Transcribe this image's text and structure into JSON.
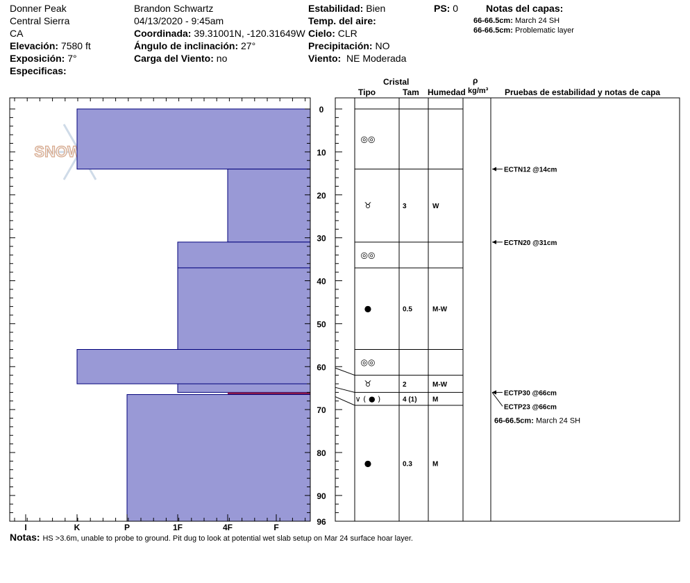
{
  "header": {
    "col1": [
      "Donner Peak",
      "Central Sierra",
      "CA"
    ],
    "elevation_label": "Elevación:",
    "elevation": "7580 ft",
    "aspect_label": "Exposición:",
    "aspect": "7°",
    "specifics_label": "Especificas:",
    "observer": "Brandon Schwartz",
    "datetime": "04/13/2020 - 9:45am",
    "coord_label": "Coordinada:",
    "coord": "39.31001N, -120.31649W",
    "incline_label": "Ángulo de inclinación:",
    "incline": "27°",
    "wind_load_label": "Carga del Viento:",
    "wind_load": "no",
    "stability_label": "Estabilidad:",
    "stability": "Bien",
    "air_temp_label": "Temp. del aire:",
    "sky_label": "Cielo:",
    "sky": "CLR",
    "precip_label": "Precipitación:",
    "precip": "NO",
    "wind_label": "Viento:",
    "wind": "NE Moderada",
    "ps_label": "PS:",
    "ps": "0",
    "layer_notes_title": "Notas del capas:",
    "layer_notes": [
      {
        "range": "66-66.5cm:",
        "text": "March 24 SH"
      },
      {
        "range": "66-66.5cm:",
        "text": "Problematic layer"
      }
    ]
  },
  "logo_text": "SNOWPILOT",
  "table_headers": {
    "crystal": "Cristal",
    "type": "Tipo",
    "size": "Tam",
    "moisture": "Humedad",
    "rho": "ρ",
    "density_unit": "kg/m³",
    "tests": "Pruebas de estabilidad y notas de capa"
  },
  "notes_label": "Notas:",
  "notes": "HS >3.6m, unable to probe to ground. Pit dug to look at potential wet slab setup on Mar 24 surface hoar layer.",
  "colors": {
    "layer_fill": "#9999d6",
    "layer_stroke": "#00007a",
    "weak_layer": "#8b1a4a"
  },
  "chart_data": {
    "type": "snow_profile",
    "depth_axis": {
      "min": 0,
      "max": 96,
      "ticks": [
        0,
        10,
        20,
        30,
        40,
        50,
        60,
        70,
        80,
        90,
        96
      ],
      "unit": "cm"
    },
    "hardness_axis": {
      "labels": [
        "I",
        "K",
        "P",
        "1F",
        "4F",
        "F"
      ],
      "order": [
        "F",
        "4F",
        "1F",
        "P",
        "K",
        "I"
      ]
    },
    "hardness_layers": [
      {
        "top": 0,
        "bottom": 14,
        "hardness": "K"
      },
      {
        "top": 14,
        "bottom": 31,
        "hardness": "4F"
      },
      {
        "top": 31,
        "bottom": 37,
        "hardness": "1F"
      },
      {
        "top": 37,
        "bottom": 56,
        "hardness": "1F"
      },
      {
        "top": 56,
        "bottom": 64,
        "hardness": "K"
      },
      {
        "top": 64,
        "bottom": 66,
        "hardness": "1F"
      },
      {
        "top": 66,
        "bottom": 66.5,
        "hardness": "4F",
        "weak": true
      },
      {
        "top": 66.5,
        "bottom": 96,
        "hardness": "P"
      }
    ],
    "stratigraphy": [
      {
        "top": 0,
        "bottom": 14,
        "grain": "melt-forms",
        "size": "",
        "moisture": ""
      },
      {
        "top": 14,
        "bottom": 31,
        "grain": "faceted-rounded",
        "size": "3",
        "moisture": "W"
      },
      {
        "top": 31,
        "bottom": 37,
        "grain": "melt-forms",
        "size": "",
        "moisture": ""
      },
      {
        "top": 37,
        "bottom": 56,
        "grain": "rounded",
        "size": "0.5",
        "moisture": "M-W"
      },
      {
        "top": 56,
        "bottom": 62,
        "grain": "melt-forms",
        "size": "",
        "moisture": ""
      },
      {
        "top": 62,
        "bottom": 66,
        "grain": "faceted-rounded",
        "size": "2",
        "moisture": "M-W"
      },
      {
        "top": 66,
        "bottom": 69,
        "grain": "surface-hoar-rounded",
        "size": "4 (1)",
        "moisture": "M"
      },
      {
        "top": 69,
        "bottom": 96,
        "grain": "rounded",
        "size": "0.3",
        "moisture": "M"
      }
    ],
    "stability_tests": [
      {
        "depth": 14,
        "label": "ECTN12 @14cm"
      },
      {
        "depth": 31,
        "label": "ECTN20 @31cm"
      },
      {
        "depth": 66,
        "label": "ECTP30 @66cm"
      },
      {
        "depth": 66,
        "label": "ECTP23 @66cm",
        "offset": 1
      }
    ],
    "layer_note": {
      "range": "66-66.5cm:",
      "text": "March 24 SH"
    }
  }
}
